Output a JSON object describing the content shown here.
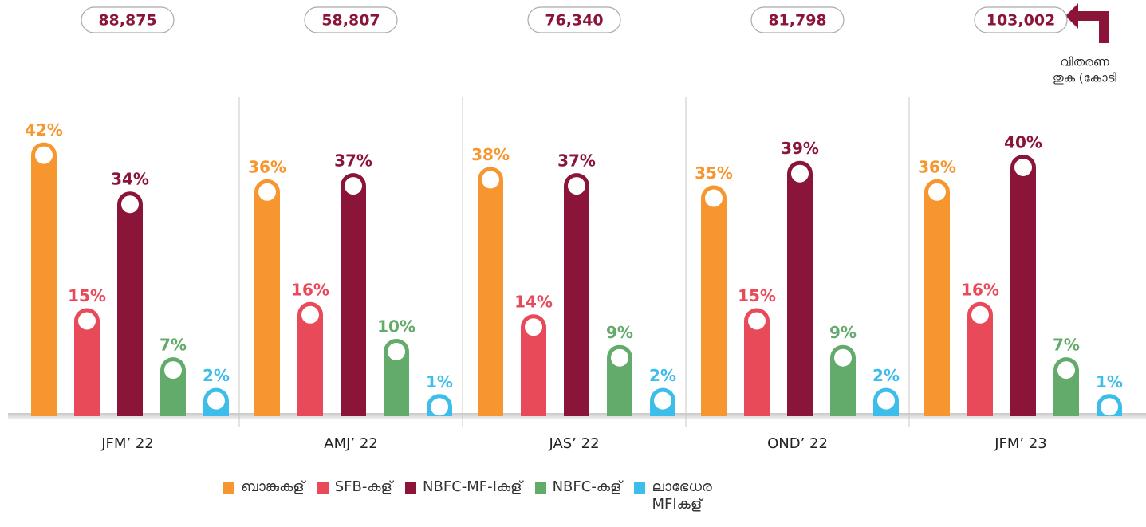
{
  "chart_data": {
    "type": "bar",
    "categories": [
      "JFM’ 22",
      "AMJ’ 22",
      "JAS’ 22",
      "OND’ 22",
      "JFM’ 23"
    ],
    "totals": {
      "values": [
        88875,
        58807,
        76340,
        81798,
        103002
      ],
      "value_labels": [
        "88,875",
        "58,807",
        "76,340",
        "81,798",
        "103,002"
      ]
    },
    "annotation": [
      "വിതരണ",
      "തുക (കോടി"
    ],
    "series": [
      {
        "name": "ബാങ്കുകള്",
        "color": "#f7962e",
        "values": [
          42,
          36,
          38,
          35,
          36
        ],
        "value_labels": [
          "42%",
          "36%",
          "38%",
          "35%",
          "36%"
        ]
      },
      {
        "name": "SFB-കള്",
        "color": "#e84a5a",
        "values": [
          15,
          16,
          14,
          15,
          16
        ],
        "value_labels": [
          "15%",
          "16%",
          "14%",
          "15%",
          "16%"
        ]
      },
      {
        "name": "NBFC-MF-Iകള്",
        "color": "#8b1538",
        "values": [
          34,
          37,
          37,
          39,
          40
        ],
        "value_labels": [
          "34%",
          "37%",
          "37%",
          "39%",
          "40%"
        ]
      },
      {
        "name": "NBFC-കള്",
        "color": "#63ab6a",
        "values": [
          7,
          10,
          9,
          9,
          7
        ],
        "value_labels": [
          "7%",
          "10%",
          "9%",
          "9%",
          "7%"
        ]
      },
      {
        "name": "ലാഭേധര MFIകള്",
        "color": "#3dbde9",
        "values": [
          2,
          1,
          2,
          2,
          1
        ],
        "value_labels": [
          "2%",
          "1%",
          "2%",
          "2%",
          "1%"
        ]
      }
    ]
  }
}
